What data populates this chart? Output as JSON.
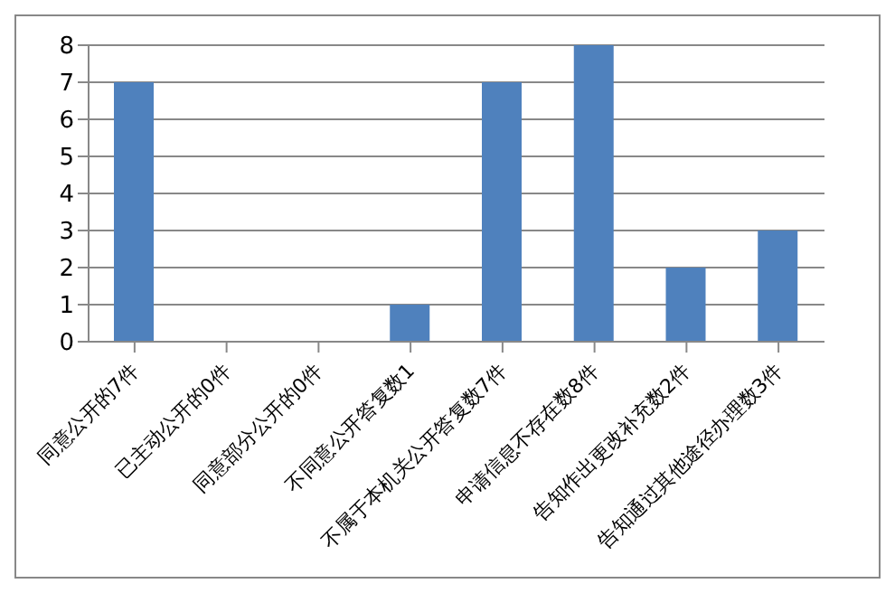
{
  "chart_data": {
    "type": "bar",
    "categories": [
      "同意公开的7件",
      "已主动公开的0件",
      "同意部分公开的0件",
      "不同意公开答复数1",
      "不属于本机关公开答复数7件",
      "申请信息不存在数8件",
      "告知作出更改补充数2件",
      "告知通过其他途径办理数3件"
    ],
    "values": [
      7,
      0,
      0,
      1,
      7,
      8,
      2,
      3
    ],
    "color": "#4f81bd",
    "ylim": [
      0,
      8
    ],
    "yticks": [
      0,
      1,
      2,
      3,
      4,
      5,
      6,
      7,
      8
    ],
    "grid": "y"
  }
}
